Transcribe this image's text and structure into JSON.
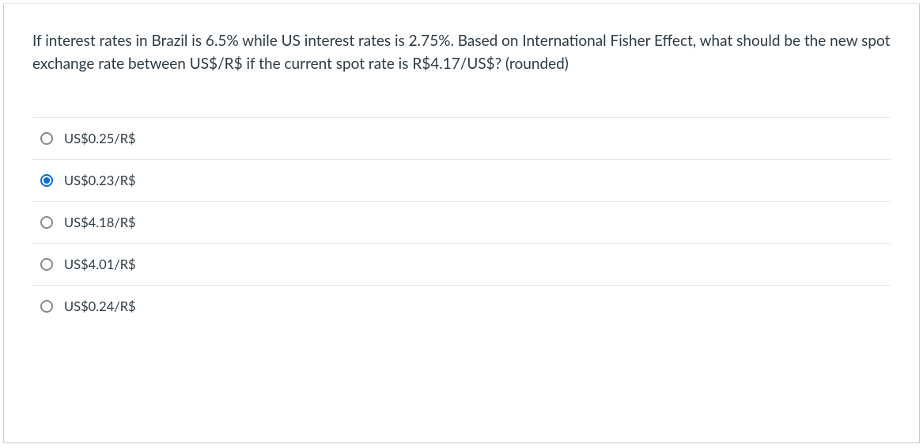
{
  "question": {
    "text": "If interest rates in Brazil is 6.5% while US interest rates is 2.75%.  Based on International Fisher Effect, what should be the new spot exchange rate between US$/R$ if the current spot rate is R$4.17/US$? (rounded)"
  },
  "options": [
    {
      "label": "US$0.25/R$",
      "selected": false
    },
    {
      "label": "US$0.23/R$",
      "selected": true
    },
    {
      "label": "US$4.18/R$",
      "selected": false
    },
    {
      "label": "US$4.01/R$",
      "selected": false
    },
    {
      "label": "US$0.24/R$",
      "selected": false
    }
  ],
  "colors": {
    "text": "#2d3b45",
    "border": "#c7cdd1",
    "divider": "#e8e8e8",
    "radio_unselected": "#888888",
    "radio_selected": "#0770d8",
    "background": "#ffffff"
  }
}
